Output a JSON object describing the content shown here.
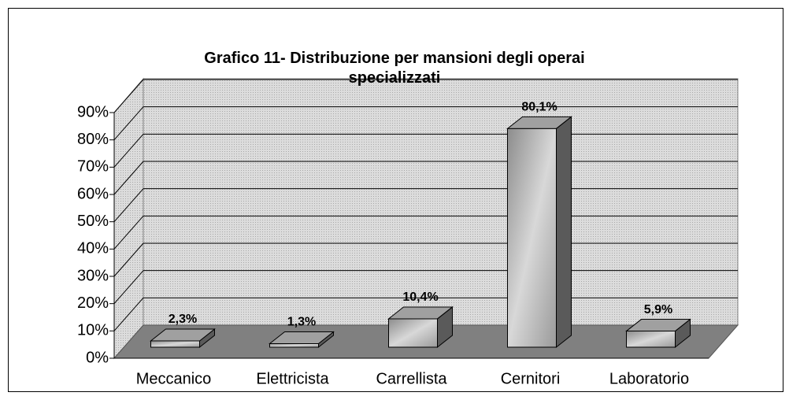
{
  "chart_data": {
    "type": "bar3d",
    "title": "Grafico 11- Distribuzione per mansioni degli operai specializzati",
    "categories": [
      "Meccanico",
      "Elettricista",
      "Carrellista",
      "Cernitori",
      "Laboratorio"
    ],
    "values": [
      2.3,
      1.3,
      10.4,
      80.1,
      5.9
    ],
    "value_labels": [
      "2,3%",
      "1,3%",
      "10,4%",
      "80,1%",
      "5,9%"
    ],
    "color": "#b4b4b4",
    "ylim": [
      0,
      90
    ],
    "yticks": [
      {
        "value": 0,
        "label": "0%"
      },
      {
        "value": 10,
        "label": "10%"
      },
      {
        "value": 20,
        "label": "20%"
      },
      {
        "value": 30,
        "label": "30%"
      },
      {
        "value": 40,
        "label": "40%"
      },
      {
        "value": 50,
        "label": "50%"
      },
      {
        "value": 60,
        "label": "60%"
      },
      {
        "value": 70,
        "label": "70%"
      },
      {
        "value": 80,
        "label": "80%"
      },
      {
        "value": 90,
        "label": "90%"
      }
    ],
    "grid": true
  }
}
